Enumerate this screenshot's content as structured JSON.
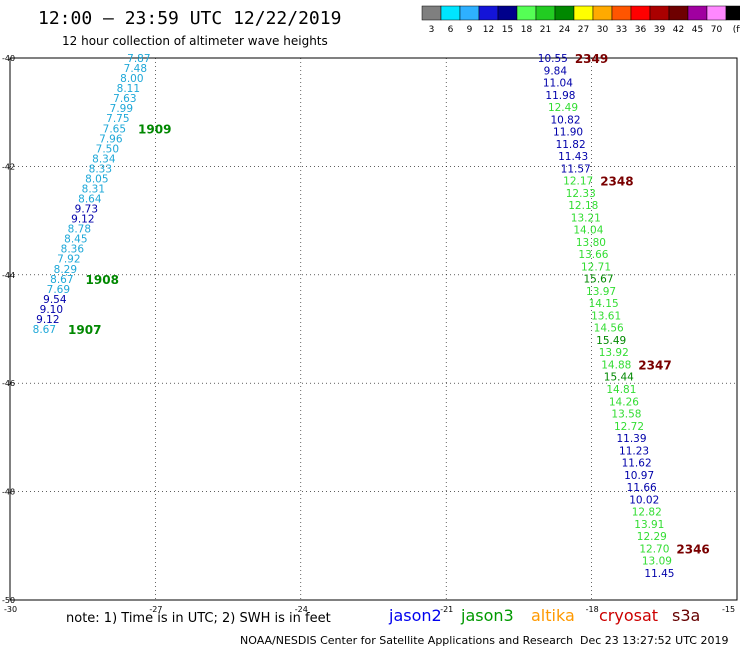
{
  "header": {
    "title": "12:00 – 23:59 UTC 12/22/2019",
    "subtitle": "12 hour collection of altimeter wave heights"
  },
  "colorbar": {
    "labels": [
      "3",
      "6",
      "9",
      "12",
      "15",
      "18",
      "21",
      "24",
      "27",
      "30",
      "33",
      "36",
      "39",
      "42",
      "45",
      "70",
      "(ft)"
    ],
    "colors": [
      "#7f7f7f",
      "#00e5ff",
      "#2eb0ff",
      "#1414d8",
      "#00008b",
      "#55ff55",
      "#22cc22",
      "#008800",
      "#ffff00",
      "#ffaa00",
      "#ff5500",
      "#ff0000",
      "#aa0000",
      "#6e0000",
      "#a000a0",
      "#ff88ff",
      "#000000"
    ]
  },
  "axes": {
    "lat_ticks": [
      "-40",
      "-42",
      "-44",
      "-46",
      "-48",
      "-50"
    ],
    "lon_ticks": [
      "-30",
      "-27",
      "-24",
      "-21",
      "-18",
      "-15"
    ]
  },
  "satellites": {
    "jason2": {
      "label": "jason2",
      "color": "#0000ee"
    },
    "jason3": {
      "label": "jason3",
      "color": "#009900"
    },
    "altika": {
      "label": "altika",
      "color": "#ff9900"
    },
    "cryosat": {
      "label": "cryosat",
      "color": "#cc0000"
    },
    "s3a": {
      "label": "s3a",
      "color": "#660000"
    }
  },
  "track_colors": {
    "cyan": "#1ea8d8",
    "navy": "#0000aa",
    "green": "#33dd33",
    "darkgreen": "#008800",
    "maroon": "#7a0000"
  },
  "tracks": {
    "west": {
      "color": "cyan",
      "lat": [
        -40.0,
        -40.2,
        -40.4,
        -40.6,
        -40.8,
        -41.0,
        -41.2,
        -41.4,
        -41.6,
        -41.8,
        -42.0,
        -42.2,
        -42.4,
        -42.6,
        -42.8,
        -43.0,
        -43.2,
        -43.4,
        -43.6,
        -43.8,
        -44.0,
        -44.2,
        -44.4,
        -44.6,
        -44.8,
        -45.0
      ],
      "lon": [
        -27.18,
        -27.25,
        -27.33,
        -27.4,
        -27.48,
        -27.55,
        -27.63,
        -27.7,
        -27.78,
        -27.85,
        -27.93,
        -28.0,
        -28.08,
        -28.15,
        -28.23,
        -28.3,
        -28.38,
        -28.45,
        -28.53,
        -28.6,
        -28.68,
        -28.75,
        -28.83,
        -28.9,
        -28.98,
        -29.05
      ],
      "values": [
        "7.87",
        "7.48",
        "8.00",
        "8.11",
        "7.63",
        "7.99",
        "7.75",
        "7.65",
        "7.96",
        "7.50",
        "8.34",
        "8.33",
        "8.05",
        "8.31",
        "8.64",
        "9.73",
        "9.12",
        "8.78",
        "8.45",
        "8.36",
        "7.92",
        "8.29",
        "8.67",
        "7.69",
        "9.54",
        "9.10",
        "9.12",
        "8.67"
      ],
      "value_colors": [
        "cyan",
        "cyan",
        "cyan",
        "cyan",
        "cyan",
        "cyan",
        "cyan",
        "cyan",
        "cyan",
        "cyan",
        "cyan",
        "cyan",
        "cyan",
        "cyan",
        "cyan",
        "navy",
        "navy",
        "cyan",
        "cyan",
        "cyan",
        "cyan",
        "cyan",
        "cyan",
        "cyan",
        "navy",
        "navy",
        "navy",
        "cyan"
      ],
      "time_labels": [
        {
          "text": "1909",
          "after_index": 7,
          "color": "darkgreen"
        },
        {
          "text": "1908",
          "after_index": 22,
          "color": "darkgreen"
        },
        {
          "text": "1907",
          "after_index": 27,
          "color": "darkgreen"
        }
      ]
    },
    "east": {
      "values": [
        "10.55",
        "9.84",
        "11.04",
        "11.98",
        "12.49",
        "10.82",
        "11.90",
        "11.82",
        "11.43",
        "11.57",
        "12.17",
        "12.33",
        "12.18",
        "13.21",
        "14.04",
        "13.80",
        "13.66",
        "12.71",
        "15.67",
        "13.97",
        "14.15",
        "13.61",
        "14.56",
        "15.49",
        "13.92",
        "14.88",
        "15.44",
        "14.81",
        "14.26",
        "13.58",
        "12.72",
        "11.39",
        "11.23",
        "11.62",
        "10.97",
        "11.66",
        "10.02",
        "12.82",
        "13.91",
        "12.29",
        "12.70",
        "13.09",
        "11.45"
      ],
      "value_colors": [
        "navy",
        "navy",
        "navy",
        "navy",
        "green",
        "navy",
        "navy",
        "navy",
        "navy",
        "navy",
        "green",
        "green",
        "green",
        "green",
        "green",
        "green",
        "green",
        "green",
        "darkgreen",
        "green",
        "green",
        "green",
        "green",
        "darkgreen",
        "green",
        "green",
        "darkgreen",
        "green",
        "green",
        "green",
        "green",
        "navy",
        "navy",
        "navy",
        "navy",
        "navy",
        "navy",
        "green",
        "green",
        "green",
        "green",
        "green",
        "navy"
      ],
      "time_labels": [
        {
          "text": "2349",
          "after_index": 0,
          "color": "maroon"
        },
        {
          "text": "2348",
          "after_index": 10,
          "color": "maroon"
        },
        {
          "text": "2347",
          "after_index": 25,
          "color": "maroon"
        },
        {
          "text": "2346",
          "after_index": 40,
          "color": "maroon"
        }
      ]
    }
  },
  "notes": {
    "text": "note: 1) Time is in UTC; 2) SWH is in feet"
  },
  "footer": {
    "left": "NOAA/NESDIS Center for Satellite Applications and Research",
    "right": "Dec 23 13:27:52 UTC 2019"
  }
}
